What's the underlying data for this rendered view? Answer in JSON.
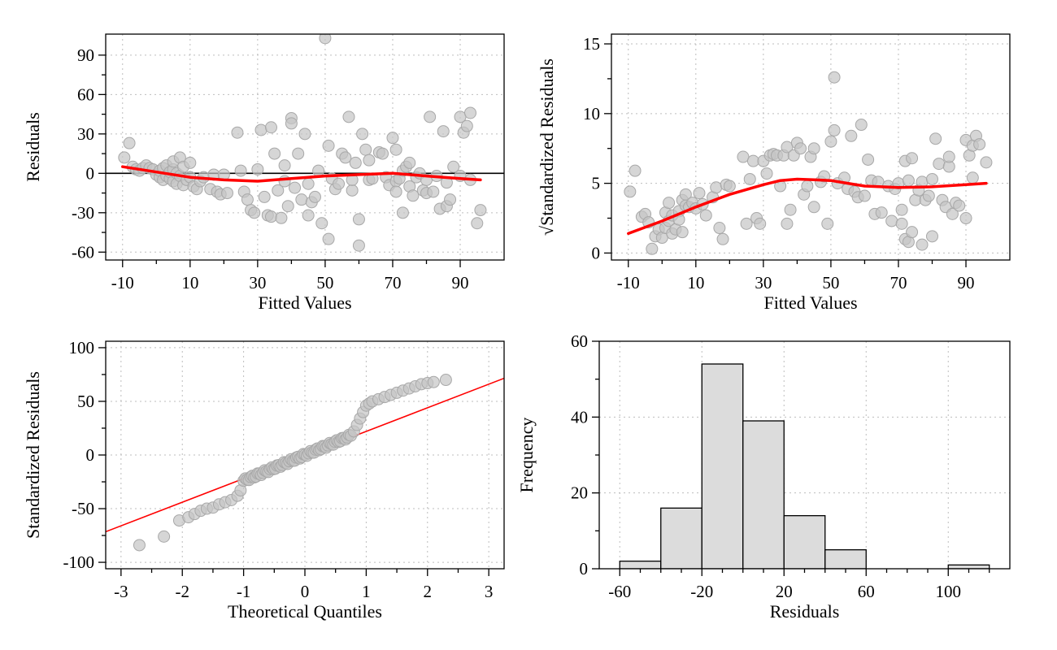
{
  "chart_data": [
    {
      "id": "residuals-vs-fitted",
      "type": "scatter",
      "title": "",
      "xlabel": "Fitted Values",
      "ylabel": "Residuals",
      "xlim": [
        -15,
        103
      ],
      "ylim": [
        -66,
        106
      ],
      "xticks": [
        -10,
        10,
        30,
        50,
        70,
        90
      ],
      "xminor": [
        0,
        20,
        40,
        60,
        80
      ],
      "yticks": [
        -60,
        -30,
        0,
        30,
        60,
        90
      ],
      "yminor": [
        -45,
        -15,
        15,
        45,
        75
      ],
      "grid": true,
      "hline": 0,
      "points": [
        [
          -9.5,
          12
        ],
        [
          -8,
          23
        ],
        [
          -7,
          5
        ],
        [
          -6,
          3
        ],
        [
          -5,
          2
        ],
        [
          -4,
          4
        ],
        [
          -3,
          6
        ],
        [
          -2,
          4
        ],
        [
          -1,
          3
        ],
        [
          0,
          -1
        ],
        [
          1,
          -3
        ],
        [
          1,
          2
        ],
        [
          2,
          -5
        ],
        [
          2,
          4
        ],
        [
          3,
          -2
        ],
        [
          3,
          6
        ],
        [
          4,
          -4
        ],
        [
          4,
          1
        ],
        [
          5,
          -6
        ],
        [
          5,
          3
        ],
        [
          5,
          9
        ],
        [
          6,
          0
        ],
        [
          6,
          -8
        ],
        [
          7,
          12
        ],
        [
          7,
          -2
        ],
        [
          8,
          -9
        ],
        [
          8,
          5
        ],
        [
          9,
          -5
        ],
        [
          10,
          -3
        ],
        [
          10,
          8
        ],
        [
          11,
          -10
        ],
        [
          12,
          -12
        ],
        [
          13,
          -6
        ],
        [
          14,
          -3
        ],
        [
          16,
          -12
        ],
        [
          17,
          -1
        ],
        [
          18,
          -14
        ],
        [
          19,
          -16
        ],
        [
          20,
          -1
        ],
        [
          21,
          -15
        ],
        [
          24,
          31
        ],
        [
          25,
          2
        ],
        [
          26,
          -14
        ],
        [
          27,
          -20
        ],
        [
          28,
          -28
        ],
        [
          29,
          -30
        ],
        [
          30,
          3
        ],
        [
          31,
          33
        ],
        [
          32,
          -18
        ],
        [
          33,
          -32
        ],
        [
          34,
          -33
        ],
        [
          34,
          35
        ],
        [
          35,
          15
        ],
        [
          36,
          -13
        ],
        [
          37,
          -34
        ],
        [
          38,
          -6
        ],
        [
          38,
          6
        ],
        [
          39,
          -25
        ],
        [
          40,
          42
        ],
        [
          40,
          38
        ],
        [
          41,
          -11
        ],
        [
          42,
          15
        ],
        [
          43,
          -20
        ],
        [
          44,
          30
        ],
        [
          45,
          -8
        ],
        [
          45,
          -32
        ],
        [
          46,
          -22
        ],
        [
          47,
          -18
        ],
        [
          48,
          2
        ],
        [
          49,
          -38
        ],
        [
          50,
          103
        ],
        [
          51,
          21
        ],
        [
          51,
          -50
        ],
        [
          52,
          -4
        ],
        [
          53,
          -12
        ],
        [
          54,
          -8
        ],
        [
          55,
          15
        ],
        [
          56,
          12
        ],
        [
          57,
          43
        ],
        [
          58,
          -13
        ],
        [
          58,
          -5
        ],
        [
          59,
          8
        ],
        [
          60,
          -35
        ],
        [
          60,
          -55
        ],
        [
          61,
          30
        ],
        [
          62,
          18
        ],
        [
          63,
          10
        ],
        [
          63,
          -5
        ],
        [
          64,
          -4
        ],
        [
          66,
          16
        ],
        [
          67,
          15
        ],
        [
          68,
          -3
        ],
        [
          69,
          -9
        ],
        [
          70,
          27
        ],
        [
          71,
          -6
        ],
        [
          71,
          -14
        ],
        [
          71,
          18
        ],
        [
          72,
          -4
        ],
        [
          73,
          2
        ],
        [
          73,
          -30
        ],
        [
          74,
          5
        ],
        [
          75,
          8
        ],
        [
          75,
          -10
        ],
        [
          76,
          -17
        ],
        [
          77,
          -3
        ],
        [
          78,
          0
        ],
        [
          79,
          -13
        ],
        [
          80,
          -15
        ],
        [
          80,
          -5
        ],
        [
          81,
          43
        ],
        [
          82,
          -14
        ],
        [
          83,
          -2
        ],
        [
          84,
          -27
        ],
        [
          85,
          32
        ],
        [
          86,
          -25
        ],
        [
          86,
          -7
        ],
        [
          87,
          -20
        ],
        [
          88,
          5
        ],
        [
          90,
          -2
        ],
        [
          90,
          43
        ],
        [
          91,
          31
        ],
        [
          92,
          36
        ],
        [
          93,
          46
        ],
        [
          93,
          -5
        ],
        [
          95,
          -38
        ],
        [
          96,
          -28
        ]
      ],
      "smooth": [
        [
          -10,
          5
        ],
        [
          0,
          1
        ],
        [
          10,
          -3
        ],
        [
          20,
          -5
        ],
        [
          30,
          -6
        ],
        [
          40,
          -4
        ],
        [
          50,
          -2
        ],
        [
          60,
          -1
        ],
        [
          70,
          0
        ],
        [
          80,
          -2
        ],
        [
          90,
          -4
        ],
        [
          96,
          -5
        ]
      ]
    },
    {
      "id": "scale-location",
      "type": "scatter",
      "title": "",
      "xlabel": "Fitted Values",
      "ylabel": "Standardized Residuals",
      "ylabel_prefix": "√",
      "xlim": [
        -15,
        103
      ],
      "ylim": [
        -0.5,
        15.7
      ],
      "xticks": [
        -10,
        10,
        30,
        50,
        70,
        90
      ],
      "xminor": [
        0,
        20,
        40,
        60,
        80
      ],
      "yticks": [
        0,
        5,
        10,
        15
      ],
      "yminor": [
        2.5,
        7.5,
        12.5
      ],
      "grid": true,
      "points": [
        [
          -9.5,
          4.4
        ],
        [
          -8,
          5.9
        ],
        [
          -6,
          2.6
        ],
        [
          -5,
          2.8
        ],
        [
          -4,
          2.2
        ],
        [
          -3,
          0.3
        ],
        [
          -2,
          1.2
        ],
        [
          -1,
          1.7
        ],
        [
          0,
          1.1
        ],
        [
          1,
          2.9
        ],
        [
          1,
          1.8
        ],
        [
          2,
          2.3
        ],
        [
          2,
          3.6
        ],
        [
          3,
          1.4
        ],
        [
          3,
          2.7
        ],
        [
          4,
          1.7
        ],
        [
          5,
          3.0
        ],
        [
          5,
          2.4
        ],
        [
          6,
          3.8
        ],
        [
          6,
          1.5
        ],
        [
          7,
          4.2
        ],
        [
          7,
          3.4
        ],
        [
          8,
          3.3
        ],
        [
          9,
          3.6
        ],
        [
          10,
          3.2
        ],
        [
          11,
          4.3
        ],
        [
          12,
          3.5
        ],
        [
          13,
          2.7
        ],
        [
          15,
          4.0
        ],
        [
          16,
          4.7
        ],
        [
          17,
          1.8
        ],
        [
          18,
          1.0
        ],
        [
          19,
          4.9
        ],
        [
          20,
          4.8
        ],
        [
          24,
          6.9
        ],
        [
          25,
          2.1
        ],
        [
          26,
          5.3
        ],
        [
          27,
          6.6
        ],
        [
          28,
          2.5
        ],
        [
          29,
          2.1
        ],
        [
          30,
          6.6
        ],
        [
          31,
          5.7
        ],
        [
          32,
          7.0
        ],
        [
          33,
          7.1
        ],
        [
          34,
          7.0
        ],
        [
          35,
          4.8
        ],
        [
          36,
          7.0
        ],
        [
          37,
          7.6
        ],
        [
          37,
          2.1
        ],
        [
          38,
          3.1
        ],
        [
          39,
          7.0
        ],
        [
          40,
          7.9
        ],
        [
          41,
          7.5
        ],
        [
          42,
          4.2
        ],
        [
          43,
          4.8
        ],
        [
          44,
          6.9
        ],
        [
          45,
          3.3
        ],
        [
          45,
          7.5
        ],
        [
          47,
          5.1
        ],
        [
          48,
          5.5
        ],
        [
          49,
          2.1
        ],
        [
          50,
          8.0
        ],
        [
          51,
          12.6
        ],
        [
          51,
          8.8
        ],
        [
          52,
          5.0
        ],
        [
          54,
          5.4
        ],
        [
          55,
          4.6
        ],
        [
          56,
          8.4
        ],
        [
          57,
          4.4
        ],
        [
          58,
          4.0
        ],
        [
          59,
          9.2
        ],
        [
          60,
          4.1
        ],
        [
          61,
          6.7
        ],
        [
          62,
          5.2
        ],
        [
          63,
          2.8
        ],
        [
          64,
          5.1
        ],
        [
          65,
          2.9
        ],
        [
          67,
          4.8
        ],
        [
          68,
          2.3
        ],
        [
          69,
          4.6
        ],
        [
          70,
          5.0
        ],
        [
          71,
          3.1
        ],
        [
          71,
          2.1
        ],
        [
          72,
          1.0
        ],
        [
          72,
          6.6
        ],
        [
          73,
          5.2
        ],
        [
          73,
          0.8
        ],
        [
          74,
          6.8
        ],
        [
          74,
          1.5
        ],
        [
          75,
          3.8
        ],
        [
          76,
          4.5
        ],
        [
          77,
          0.6
        ],
        [
          77,
          5.1
        ],
        [
          78,
          3.8
        ],
        [
          79,
          4.1
        ],
        [
          80,
          1.2
        ],
        [
          80,
          5.3
        ],
        [
          81,
          8.2
        ],
        [
          82,
          6.4
        ],
        [
          83,
          3.8
        ],
        [
          84,
          3.3
        ],
        [
          85,
          6.2
        ],
        [
          85,
          6.9
        ],
        [
          86,
          2.8
        ],
        [
          87,
          3.6
        ],
        [
          88,
          3.4
        ],
        [
          90,
          2.5
        ],
        [
          90,
          8.1
        ],
        [
          91,
          7.0
        ],
        [
          92,
          5.4
        ],
        [
          92,
          7.7
        ],
        [
          93,
          8.4
        ],
        [
          94,
          7.8
        ],
        [
          96,
          6.5
        ]
      ],
      "smooth": [
        [
          -10,
          1.4
        ],
        [
          0,
          2.3
        ],
        [
          10,
          3.3
        ],
        [
          20,
          4.2
        ],
        [
          30,
          4.9
        ],
        [
          35,
          5.2
        ],
        [
          40,
          5.3
        ],
        [
          45,
          5.25
        ],
        [
          50,
          5.2
        ],
        [
          55,
          5.0
        ],
        [
          60,
          4.8
        ],
        [
          70,
          4.7
        ],
        [
          80,
          4.75
        ],
        [
          90,
          4.9
        ],
        [
          96,
          5.0
        ]
      ]
    },
    {
      "id": "normal-qq",
      "type": "scatter",
      "title": "",
      "xlabel": "Theoretical Quantiles",
      "ylabel": "Standardized Residuals",
      "xlim": [
        -3.25,
        3.25
      ],
      "ylim": [
        -106,
        106
      ],
      "xticks": [
        -3,
        -2,
        -1,
        0,
        1,
        2,
        3
      ],
      "xminor": [
        -2.5,
        -1.5,
        -0.5,
        0.5,
        1.5,
        2.5
      ],
      "yticks": [
        -100,
        -50,
        0,
        50,
        100
      ],
      "yminor": [
        -75,
        -25,
        25,
        75
      ],
      "grid": true,
      "refline": {
        "slope": 22,
        "intercept": 0
      },
      "quantile_points": [
        [
          -2.7,
          -84
        ],
        [
          -2.3,
          -76
        ],
        [
          -2.05,
          -61
        ],
        [
          -1.9,
          -58
        ],
        [
          -1.8,
          -55
        ],
        [
          -1.7,
          -52
        ],
        [
          -1.6,
          -50
        ],
        [
          -1.5,
          -49
        ],
        [
          -1.4,
          -46
        ],
        [
          -1.3,
          -44
        ],
        [
          -1.2,
          -42
        ],
        [
          -1.1,
          -38
        ],
        [
          -1.05,
          -33
        ]
      ],
      "quantile_range": [
        -1.0,
        0.72
      ],
      "quantile_slope": 24,
      "quantile_upper": [
        [
          0.75,
          18
        ],
        [
          0.8,
          22
        ],
        [
          0.85,
          28
        ],
        [
          0.9,
          34
        ],
        [
          0.95,
          40
        ],
        [
          1.0,
          46
        ],
        [
          1.05,
          48
        ],
        [
          1.1,
          50
        ],
        [
          1.2,
          52
        ],
        [
          1.3,
          54
        ],
        [
          1.4,
          56
        ],
        [
          1.5,
          58
        ],
        [
          1.6,
          60
        ],
        [
          1.7,
          62
        ],
        [
          1.8,
          64
        ],
        [
          1.9,
          66
        ],
        [
          2.0,
          67
        ],
        [
          2.1,
          68
        ],
        [
          2.3,
          70
        ]
      ]
    },
    {
      "id": "residual-histogram",
      "type": "bar",
      "title": "",
      "xlabel": "Residuals",
      "ylabel": "Frequency",
      "xlim": [
        -70,
        130
      ],
      "ylim": [
        0,
        60
      ],
      "xticks": [
        -60,
        -20,
        20,
        60,
        100
      ],
      "xminor": [
        -50,
        -40,
        -30,
        -10,
        0,
        10,
        30,
        40,
        50,
        70,
        80,
        90,
        110,
        120
      ],
      "yticks": [
        0,
        20,
        40,
        60
      ],
      "yminor": [
        10,
        30,
        50
      ],
      "grid": true,
      "bins": [
        [
          -60,
          -40,
          2
        ],
        [
          -40,
          -20,
          16
        ],
        [
          -20,
          0,
          54
        ],
        [
          0,
          20,
          39
        ],
        [
          20,
          40,
          14
        ],
        [
          40,
          60,
          5
        ],
        [
          60,
          80,
          0
        ],
        [
          80,
          100,
          0
        ],
        [
          100,
          120,
          1
        ]
      ]
    }
  ]
}
